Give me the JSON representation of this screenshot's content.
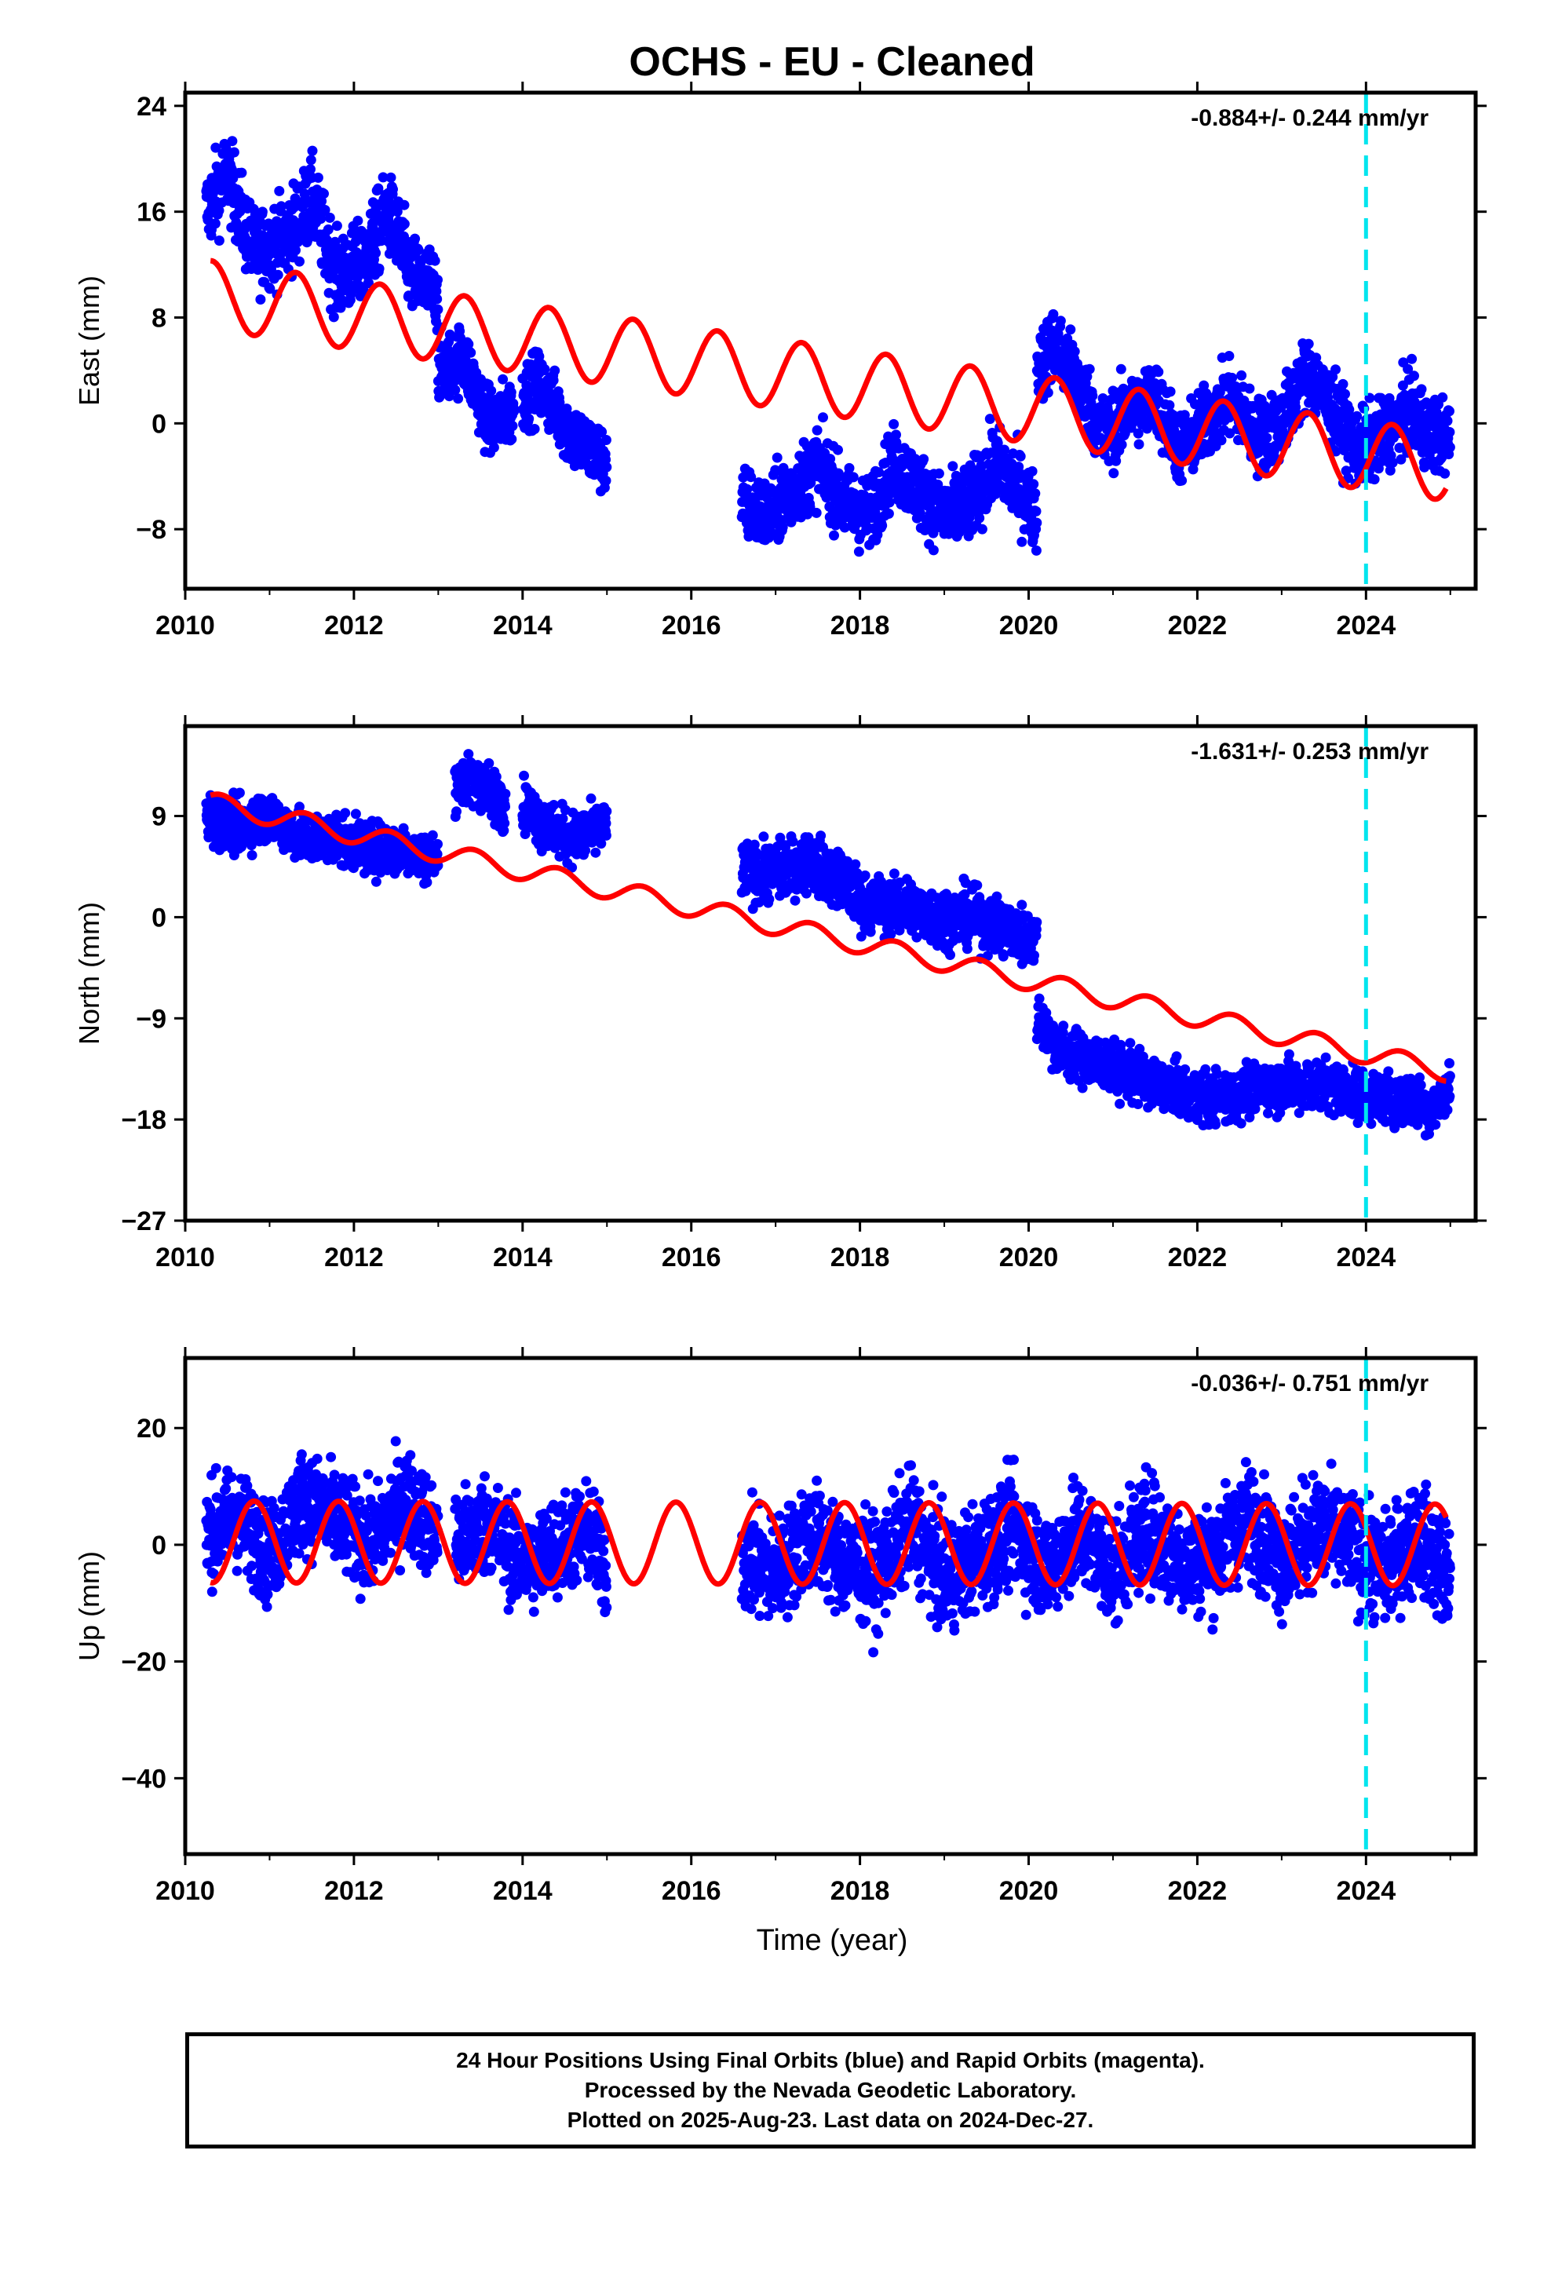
{
  "title": "OCHS  - EU - Cleaned",
  "xlabel": "Time (year)",
  "footer": {
    "line1": "24 Hour Positions Using Final Orbits (blue) and Rapid Orbits (magenta).",
    "line2": "Processed by the Nevada Geodetic Laboratory.",
    "line3": "Plotted on 2025-Aug-23. Last data on 2024-Dec-27."
  },
  "colors": {
    "data": "#0000ff",
    "model": "#ff0000",
    "marker": "#00e5ee",
    "frame": "#000000"
  },
  "chart_data": [
    {
      "type": "scatter",
      "panel": "east",
      "ylabel": "East (mm)",
      "rate_label": "-0.884+/- 0.244 mm/yr",
      "xlim": [
        2010,
        2025.3
      ],
      "ylim": [
        -12.5,
        25
      ],
      "yticks": [
        -8,
        0,
        8,
        16,
        24
      ],
      "ytick_labels": [
        "−8",
        "0",
        "8",
        "16",
        "24"
      ],
      "xticks": [
        2010,
        2012,
        2014,
        2016,
        2018,
        2020,
        2022,
        2024
      ],
      "marker_x": 2024.0,
      "segments": [
        {
          "x": [
            2010.25,
            2010.5,
            2010.8,
            2011.2,
            2011.5,
            2011.8,
            2012.1,
            2012.4,
            2012.7,
            2013.0
          ],
          "y": [
            16,
            19,
            13,
            14,
            17,
            11,
            12,
            16,
            11,
            10
          ],
          "spread": 2.2
        },
        {
          "x": [
            2013.0,
            2013.3,
            2013.6,
            2013.9
          ],
          "y": [
            4,
            5,
            0,
            1
          ],
          "spread": 1.8
        },
        {
          "x": [
            2014.0,
            2014.2,
            2014.4,
            2014.6,
            2014.8,
            2015.0
          ],
          "y": [
            2,
            3,
            1,
            -1,
            -2,
            -3
          ],
          "spread": 1.8
        },
        {
          "x": [
            2016.6,
            2016.9,
            2017.2,
            2017.5,
            2017.8,
            2018.1,
            2018.4,
            2018.7,
            2019.0,
            2019.3,
            2019.6,
            2019.9,
            2020.1
          ],
          "y": [
            -6,
            -7,
            -5,
            -3,
            -6,
            -7,
            -3,
            -5,
            -7,
            -6,
            -3,
            -5,
            -7
          ],
          "spread": 2.0
        },
        {
          "x": [
            2020.1,
            2020.3,
            2020.6,
            2020.9,
            2021.2,
            2021.5,
            2021.8,
            2022.1,
            2022.4,
            2022.7,
            2023.0,
            2023.3,
            2023.6,
            2023.9,
            2024.2,
            2024.5,
            2024.8,
            2025.0
          ],
          "y": [
            4,
            6,
            3,
            -1,
            1,
            2,
            -2,
            0,
            2,
            -1,
            0,
            4,
            1,
            -2,
            -1,
            1,
            -1,
            -1
          ],
          "spread": 2.0
        }
      ],
      "model_trend": {
        "x0": 2010.3,
        "y0": 9.7,
        "slope": -0.884,
        "amp": 2.6,
        "phase": 1.5
      }
    },
    {
      "type": "scatter",
      "panel": "north",
      "ylabel": "North (mm)",
      "rate_label": "-1.631+/- 0.253 mm/yr",
      "xlim": [
        2010,
        2025.3
      ],
      "ylim": [
        -27,
        17
      ],
      "yticks": [
        -27,
        -18,
        -9,
        0,
        9
      ],
      "ytick_labels": [
        "−27",
        "−18",
        "−9",
        "0",
        "9"
      ],
      "xticks": [
        2010,
        2012,
        2014,
        2016,
        2018,
        2020,
        2022,
        2024
      ],
      "marker_x": 2024.0,
      "segments": [
        {
          "x": [
            2010.25,
            2010.6,
            2011.0,
            2011.4,
            2011.8,
            2012.2,
            2012.6,
            2013.0
          ],
          "y": [
            9,
            8,
            9,
            7,
            7,
            6,
            6,
            5
          ],
          "spread": 1.6
        },
        {
          "x": [
            2013.2,
            2013.5,
            2013.8
          ],
          "y": [
            12,
            12,
            10
          ],
          "spread": 1.6
        },
        {
          "x": [
            2014.0,
            2014.3,
            2014.6,
            2015.0
          ],
          "y": [
            10,
            8,
            7,
            8
          ],
          "spread": 1.6
        },
        {
          "x": [
            2016.6,
            2017.0,
            2017.4,
            2017.8,
            2018.1,
            2018.5,
            2018.9,
            2019.3,
            2019.7,
            2020.1
          ],
          "y": [
            4,
            4,
            5,
            3,
            1,
            1,
            0,
            0,
            -1,
            -2
          ],
          "spread": 1.8
        },
        {
          "x": [
            2020.1,
            2020.4,
            2020.8,
            2021.2,
            2021.6,
            2022.0,
            2022.4,
            2022.8,
            2023.2,
            2023.6,
            2024.0,
            2024.4,
            2024.8,
            2025.0
          ],
          "y": [
            -9,
            -12,
            -13,
            -14,
            -15,
            -16,
            -16,
            -15,
            -15,
            -15,
            -16,
            -16,
            -17,
            -15
          ],
          "spread": 1.6
        }
      ],
      "model_trend": {
        "x0": 2010.3,
        "y0": 10.2,
        "slope": -1.631,
        "amp": 0.9,
        "phase": 0.8
      }
    },
    {
      "type": "scatter",
      "panel": "up",
      "ylabel": "Up (mm)",
      "rate_label": "-0.036+/- 0.751 mm/yr",
      "xlim": [
        2010,
        2025.3
      ],
      "ylim": [
        -53,
        32
      ],
      "yticks": [
        -40,
        -20,
        0,
        20
      ],
      "ytick_labels": [
        "−40",
        "−20",
        "0",
        "20"
      ],
      "xticks": [
        2010,
        2012,
        2014,
        2016,
        2018,
        2020,
        2022,
        2024
      ],
      "marker_x": 2024.0,
      "segments": [
        {
          "x": [
            2010.25,
            2010.6,
            2011.0,
            2011.4,
            2011.8,
            2012.2,
            2012.6,
            2013.0
          ],
          "y": [
            2,
            5,
            -2,
            8,
            4,
            0,
            8,
            2
          ],
          "spread": 6.0
        },
        {
          "x": [
            2013.2,
            2013.6,
            2014.0,
            2014.4,
            2014.8,
            2015.0
          ],
          "y": [
            0,
            4,
            -4,
            0,
            2,
            -5
          ],
          "spread": 6.0
        },
        {
          "x": [
            2016.6,
            2017.0,
            2017.4,
            2017.8,
            2018.2,
            2018.6,
            2019.0,
            2019.4,
            2019.8,
            2020.2,
            2020.6,
            2021.0,
            2021.4,
            2021.8,
            2022.2,
            2022.6,
            2023.0,
            2023.4,
            2023.8,
            2024.2,
            2024.6,
            2025.0
          ],
          "y": [
            -2,
            -5,
            2,
            -3,
            -5,
            4,
            -6,
            -2,
            3,
            -4,
            2,
            -5,
            3,
            -3,
            -2,
            5,
            -3,
            3,
            0,
            -5,
            2,
            -6
          ],
          "spread": 6.5
        }
      ],
      "model_trend": {
        "x0": 2010.3,
        "y0": 0.5,
        "slope": -0.036,
        "amp": 7.0,
        "phase": 4.6
      }
    }
  ]
}
